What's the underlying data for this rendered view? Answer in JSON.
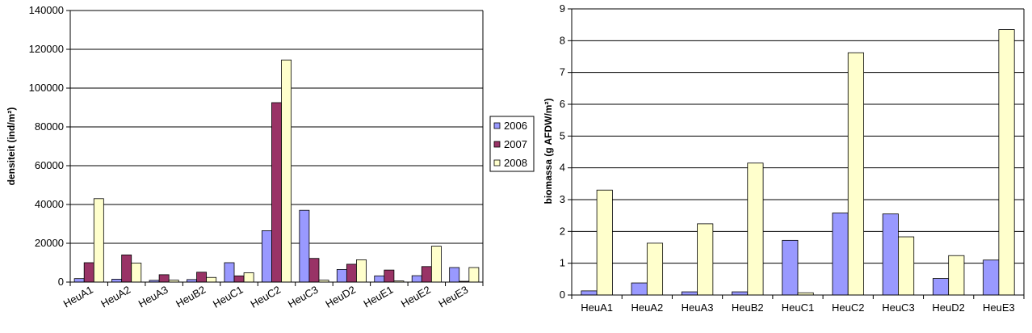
{
  "chart_data": [
    {
      "type": "bar",
      "title": "",
      "xlabel": "",
      "ylabel": "densiteit (ind/m²)",
      "ylim": [
        0,
        140000
      ],
      "yticks": [
        "0",
        "20000",
        "40000",
        "60000",
        "80000",
        "100000",
        "120000",
        "140000"
      ],
      "grid": true,
      "legend_position": "right",
      "categories": [
        "HeuA1",
        "HeuA2",
        "HeuA3",
        "HeuB2",
        "HeuC1",
        "HeuC2",
        "HeuC3",
        "HeuD2",
        "HeuE1",
        "HeuE2",
        "HeuE3"
      ],
      "series": [
        {
          "name": "2006",
          "color": "#9999ff",
          "values": [
            1800,
            1500,
            900,
            1300,
            10000,
            26500,
            37000,
            6500,
            3200,
            3300,
            7500
          ]
        },
        {
          "name": "2007",
          "color": "#993366",
          "values": [
            10000,
            14000,
            3800,
            5100,
            3200,
            92500,
            12200,
            9200,
            6200,
            8000,
            400
          ]
        },
        {
          "name": "2008",
          "color": "#ffffcc",
          "values": [
            43000,
            9800,
            1000,
            2400,
            4800,
            114500,
            1000,
            11500,
            600,
            18500,
            7500
          ]
        }
      ]
    },
    {
      "type": "bar",
      "title": "",
      "xlabel": "",
      "ylabel": "biomassa (g AFDW/m²)",
      "ylim": [
        0,
        9
      ],
      "yticks": [
        "0",
        "1",
        "2",
        "3",
        "4",
        "5",
        "6",
        "7",
        "8",
        "9"
      ],
      "grid": true,
      "categories": [
        "HeuA1",
        "HeuA2",
        "HeuA3",
        "HeuB2",
        "HeuC1",
        "HeuC2",
        "HeuC3",
        "HeuD2",
        "HeuE3"
      ],
      "series": [
        {
          "name": "2006",
          "color": "#9999ff",
          "values": [
            0.13,
            0.38,
            0.1,
            0.1,
            1.72,
            2.58,
            2.55,
            0.52,
            1.1
          ]
        },
        {
          "name": "2008",
          "color": "#ffffcc",
          "values": [
            3.3,
            1.63,
            2.24,
            4.15,
            0.07,
            7.62,
            1.83,
            1.24,
            8.35
          ]
        }
      ]
    }
  ]
}
